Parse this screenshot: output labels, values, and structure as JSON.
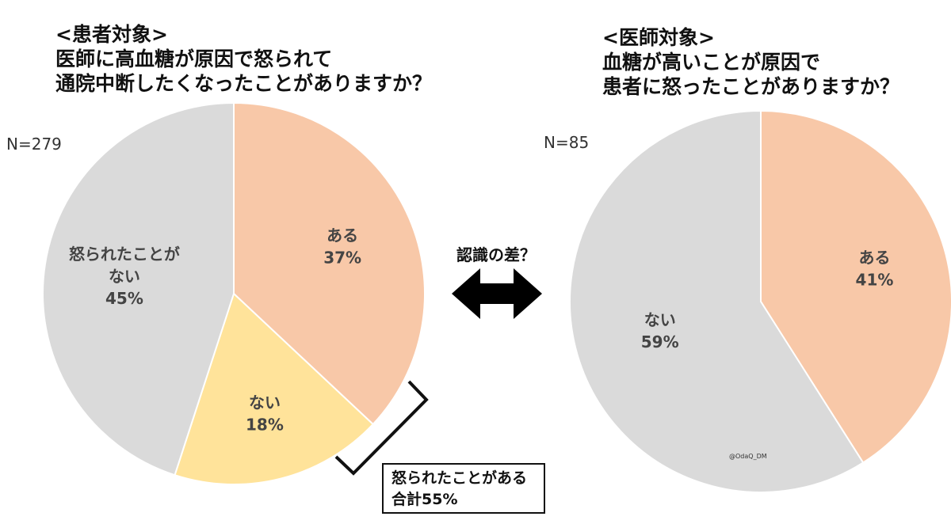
{
  "left_title": {
    "line1": "<患者対象>",
    "line2": "医師に高血糖が原因で怒られて",
    "line3": "通院中断したくなったことがありますか？"
  },
  "right_title": {
    "line1": "<医師対象>",
    "line2": "血糖が高いことが原因で",
    "line3": "患者に怒ったことがありますか？"
  },
  "middle_label": "認識の差？",
  "callout": {
    "line1": "怒られたことがある",
    "line2": "合計55%"
  },
  "credit": "@OdaQ_DM",
  "colors": {
    "orange": "#F8C8A8",
    "yellow": "#FFE39A",
    "gray": "#DADADA",
    "arrow": "#000000"
  },
  "chart_data": [
    {
      "type": "pie",
      "n_label": "N=279",
      "slices": [
        {
          "label": "ある",
          "value": 37,
          "value_label": "37%",
          "color": "#F8C8A8"
        },
        {
          "label": "ない",
          "value": 18,
          "value_label": "18%",
          "color": "#FFE39A"
        },
        {
          "label": "怒られたことが\nない",
          "value": 45,
          "value_label": "45%",
          "color": "#DADADA"
        }
      ]
    },
    {
      "type": "pie",
      "n_label": "N=85",
      "slices": [
        {
          "label": "ある",
          "value": 41,
          "value_label": "41%",
          "color": "#F8C8A8"
        },
        {
          "label": "ない",
          "value": 59,
          "value_label": "59%",
          "color": "#DADADA"
        }
      ]
    }
  ]
}
